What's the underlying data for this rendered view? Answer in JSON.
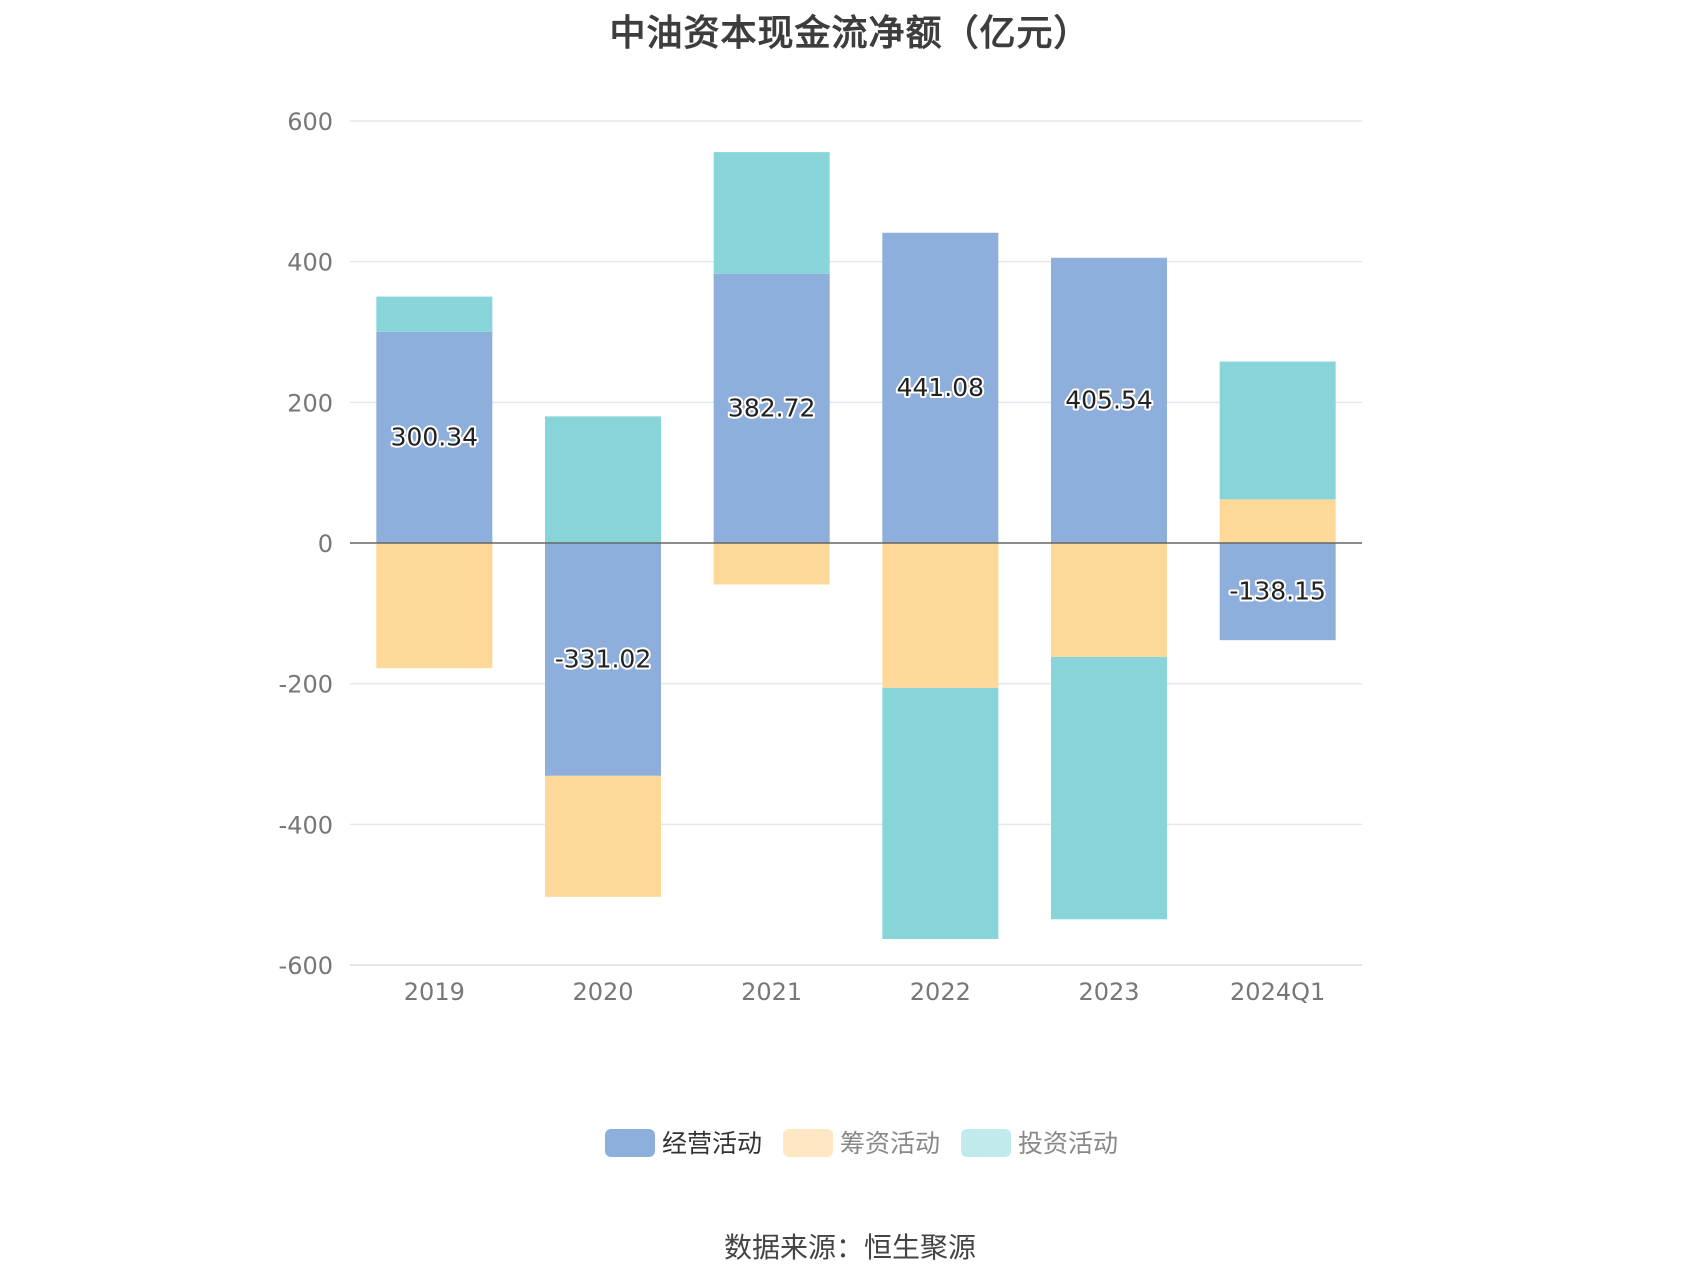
{
  "chart_data": {
    "type": "bar",
    "stacked": true,
    "title": "中油资本现金流净额（亿元）",
    "source": "数据来源：恒生聚源",
    "categories": [
      "2019",
      "2020",
      "2021",
      "2022",
      "2023",
      "2024Q1"
    ],
    "ylim": [
      -600,
      600
    ],
    "yticks": [
      600,
      400,
      200,
      0,
      -200,
      -400,
      -600
    ],
    "grid": true,
    "legend_position": "bottom-center",
    "series": [
      {
        "name": "经营活动",
        "color": "#8eaedb",
        "legend_color": "#8eaedb",
        "values": [
          300.34,
          -331.02,
          382.72,
          441.08,
          405.54,
          -138.15
        ],
        "data_labels": [
          "300.34",
          "-331.02",
          "382.72",
          "441.08",
          "405.54",
          "-138.15"
        ]
      },
      {
        "name": "筹资活动",
        "color": "#fed898",
        "legend_color": "#ffe7c4",
        "values": [
          -178,
          -172,
          -59,
          -206,
          -162,
          62
        ]
      },
      {
        "name": "投资活动",
        "color": "#87d5d8",
        "legend_color": "#c1eaec",
        "values": [
          50,
          180,
          173,
          -357,
          -373,
          196
        ]
      }
    ]
  }
}
